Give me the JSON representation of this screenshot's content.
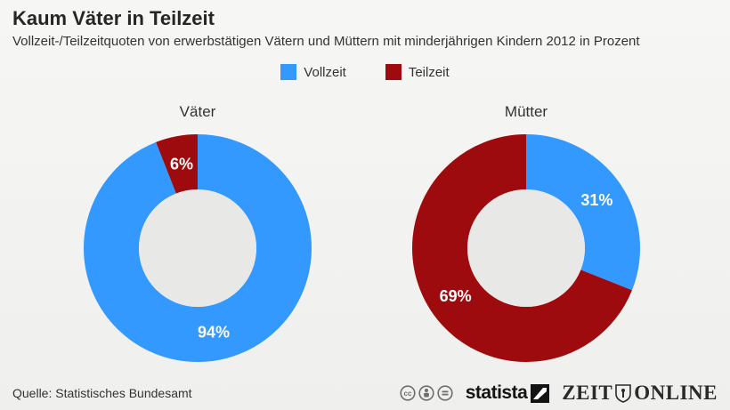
{
  "header": {
    "title": "Kaum Väter in Teilzeit",
    "subtitle": "Vollzeit-/Teilzeitquoten von erwerbstätigen Vätern und Müttern mit minderjährigen Kindern 2012 in Prozent"
  },
  "chart_data": {
    "type": "donut",
    "title": "Kaum Väter in Teilzeit",
    "unit": "percent",
    "legend": [
      {
        "label": "Vollzeit",
        "color": "#3399fe"
      },
      {
        "label": "Teilzeit",
        "color": "#9e0b0e"
      }
    ],
    "hole_color": "#e8e8e6",
    "value_label_color": "#ffffff",
    "charts": [
      {
        "title": "Väter",
        "slices": [
          {
            "label": "Vollzeit",
            "value": 94,
            "display": "94%"
          },
          {
            "label": "Teilzeit",
            "value": 6,
            "display": "6%"
          }
        ]
      },
      {
        "title": "Mütter",
        "slices": [
          {
            "label": "Vollzeit",
            "value": 31,
            "display": "31%"
          },
          {
            "label": "Teilzeit",
            "value": 69,
            "display": "69%"
          }
        ]
      }
    ]
  },
  "footer": {
    "source": "Quelle: Statistisches Bundesamt",
    "license_icons": [
      "cc",
      "by",
      "nd"
    ],
    "statista": "statista",
    "zeit": "ZEIT",
    "online": "ONLINE"
  }
}
